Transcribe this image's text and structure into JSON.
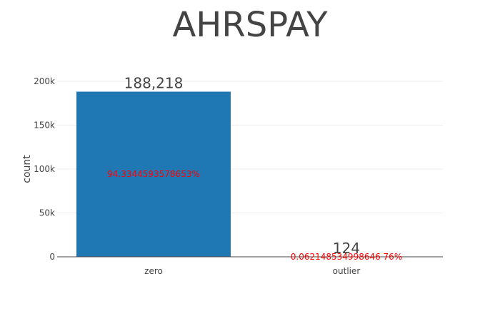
{
  "chart_data": {
    "type": "bar",
    "title": "AHRSPAY",
    "ylabel": "count",
    "categories": [
      "zero",
      "outlier"
    ],
    "values": [
      188218,
      124
    ],
    "value_labels": [
      "188,218",
      "124"
    ],
    "percent_labels": [
      "94.3344593578653%",
      "0.062148534998646 76%"
    ],
    "ylim": [
      0,
      200000
    ],
    "yticks": [
      0,
      50000,
      100000,
      150000,
      200000
    ],
    "ytick_labels": [
      "0",
      "50k",
      "100k",
      "150k",
      "200k"
    ],
    "grid": true,
    "bar_color": "#1f77b4",
    "percent_color": "#ff0000"
  }
}
